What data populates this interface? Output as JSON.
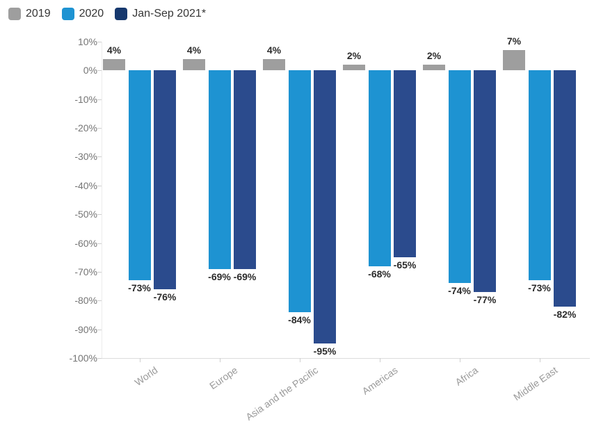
{
  "page": {
    "background": "#ffffff"
  },
  "chart_data": {
    "type": "bar",
    "title": "",
    "xlabel": "",
    "ylabel": "",
    "categories": [
      "World",
      "Europe",
      "Asia and the Pacific",
      "Americas",
      "Africa",
      "Middle East"
    ],
    "series": [
      {
        "name": "2019",
        "color": "#9e9e9e",
        "values": [
          4,
          4,
          4,
          2,
          2,
          7
        ]
      },
      {
        "name": "2020",
        "color": "#1e93d2",
        "values": [
          -73,
          -69,
          -84,
          -68,
          -74,
          -73
        ]
      },
      {
        "name": "Jan-Sep 2021*",
        "color": "#2b4b8d",
        "legend_color": "#16386e",
        "values": [
          -76,
          -69,
          -95,
          -65,
          -77,
          -82
        ]
      }
    ],
    "ylim": [
      -100,
      10
    ],
    "ytick_step": 10,
    "ytick_values": [
      10,
      0,
      -10,
      -20,
      -30,
      -40,
      -50,
      -60,
      -70,
      -80,
      -90,
      -100
    ],
    "ytick_labels": [
      "10%",
      "0%",
      "-10%",
      "-20%",
      "-30%",
      "-40%",
      "-50%",
      "-60%",
      "-70%",
      "-80%",
      "-90%",
      "-100%"
    ],
    "value_label_suffix": "%",
    "grid": false,
    "legend_position": "top-left",
    "axis_color": "#dcdcdc",
    "tick_color": "#cfcfcf"
  }
}
